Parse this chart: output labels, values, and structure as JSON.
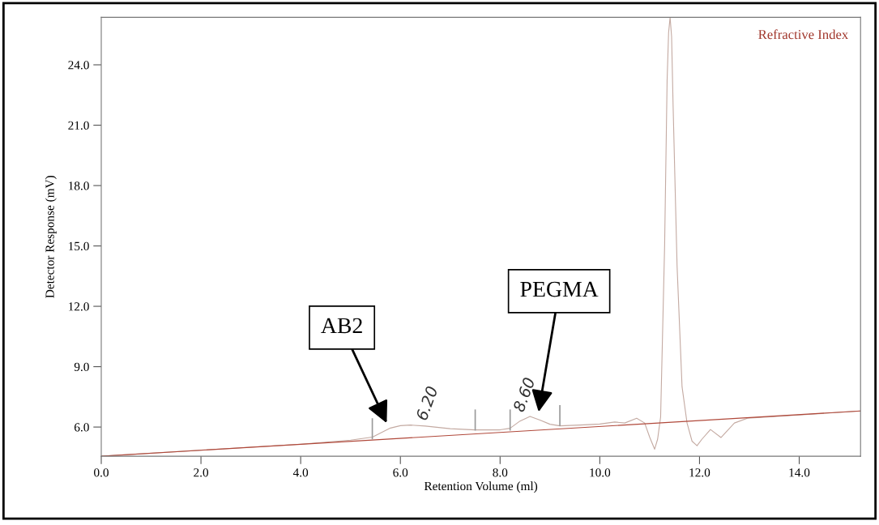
{
  "chart_data": {
    "type": "line",
    "xlabel": "Retention Volume (ml)",
    "ylabel": "Detector Response (mV)",
    "xlim": [
      0,
      15.23
    ],
    "ylim": [
      4.55,
      26.36
    ],
    "xticks": [
      {
        "value": 0,
        "label": "0.0"
      },
      {
        "value": 2,
        "label": "2.0"
      },
      {
        "value": 4,
        "label": "4.0"
      },
      {
        "value": 6,
        "label": "6.0"
      },
      {
        "value": 8,
        "label": "8.0"
      },
      {
        "value": 10,
        "label": "10.0"
      },
      {
        "value": 12,
        "label": "12.0"
      },
      {
        "value": 14,
        "label": "14.0"
      }
    ],
    "yticks": [
      {
        "value": 6,
        "label": "6.0"
      },
      {
        "value": 9,
        "label": "9.0"
      },
      {
        "value": 12,
        "label": "12.0"
      },
      {
        "value": 15,
        "label": "15.0"
      },
      {
        "value": 18,
        "label": "18.0"
      },
      {
        "value": 21,
        "label": "21.0"
      },
      {
        "value": 24,
        "label": "24.0"
      }
    ],
    "grid": false,
    "legend": "top right",
    "marker": "none",
    "line_style": "solid",
    "series": [
      {
        "name": "Refractive Index",
        "color": "#c4aaa2",
        "x": [
          0,
          2,
          4,
          5.0,
          5.44,
          5.6,
          5.8,
          6.0,
          6.2,
          6.5,
          7.0,
          7.5,
          8.0,
          8.2,
          8.4,
          8.6,
          8.8,
          9.0,
          9.2,
          9.6,
          10.0,
          10.3,
          10.5,
          10.74,
          10.9,
          11.0,
          11.1,
          11.16,
          11.22,
          11.3,
          11.35,
          11.38,
          11.41,
          11.44,
          11.47,
          11.55,
          11.65,
          11.75,
          11.85,
          11.95,
          12.05,
          12.22,
          12.43,
          12.7,
          12.96,
          14,
          15.23
        ],
        "values": [
          4.55,
          4.85,
          5.15,
          5.35,
          5.5,
          5.7,
          5.95,
          6.07,
          6.1,
          6.05,
          5.92,
          5.86,
          5.86,
          5.94,
          6.3,
          6.53,
          6.35,
          6.14,
          6.06,
          6.1,
          6.15,
          6.25,
          6.2,
          6.44,
          6.2,
          5.5,
          4.9,
          5.4,
          6.5,
          15,
          23.2,
          25.6,
          26.36,
          25.4,
          22,
          14,
          8,
          6.2,
          5.3,
          5.07,
          5.4,
          5.88,
          5.48,
          6.2,
          6.44,
          6.6,
          6.8
        ]
      },
      {
        "color": "#b0483a",
        "x": [
          0,
          15.23
        ],
        "values": [
          4.55,
          6.8
        ]
      }
    ],
    "annotations": [
      {
        "text": "6.20",
        "x": 6.2,
        "y": 6.1
      },
      {
        "text": "8.60",
        "x": 8.6,
        "y": 6.53
      },
      "AB2",
      "PEGMA"
    ]
  }
}
